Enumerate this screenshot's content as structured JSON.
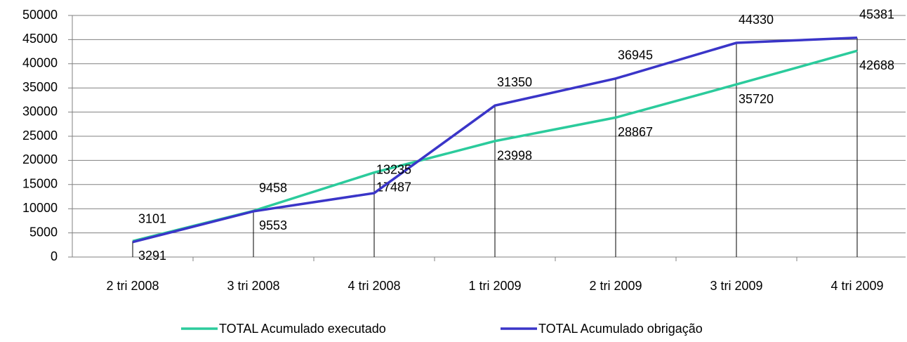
{
  "chart_data": {
    "type": "line",
    "categories": [
      "2 tri 2008",
      "3 tri 2008",
      "4 tri 2008",
      "1 tri 2009",
      "2 tri 2009",
      "3 tri 2009",
      "4 tri 2009"
    ],
    "series": [
      {
        "name": "TOTAL Acumulado executado",
        "color": "#2bcb9c",
        "values": [
          3291,
          9553,
          17487,
          23998,
          28867,
          35720,
          42688
        ]
      },
      {
        "name": "TOTAL Acumulado obrigação",
        "color": "#3a35c8",
        "values": [
          3101,
          9458,
          13235,
          31350,
          36945,
          44330,
          45381
        ]
      }
    ],
    "ylim": [
      0,
      50000
    ],
    "yticks": [
      0,
      5000,
      10000,
      15000,
      20000,
      25000,
      30000,
      35000,
      40000,
      45000,
      50000
    ],
    "grid": true,
    "legend": "bottom"
  }
}
